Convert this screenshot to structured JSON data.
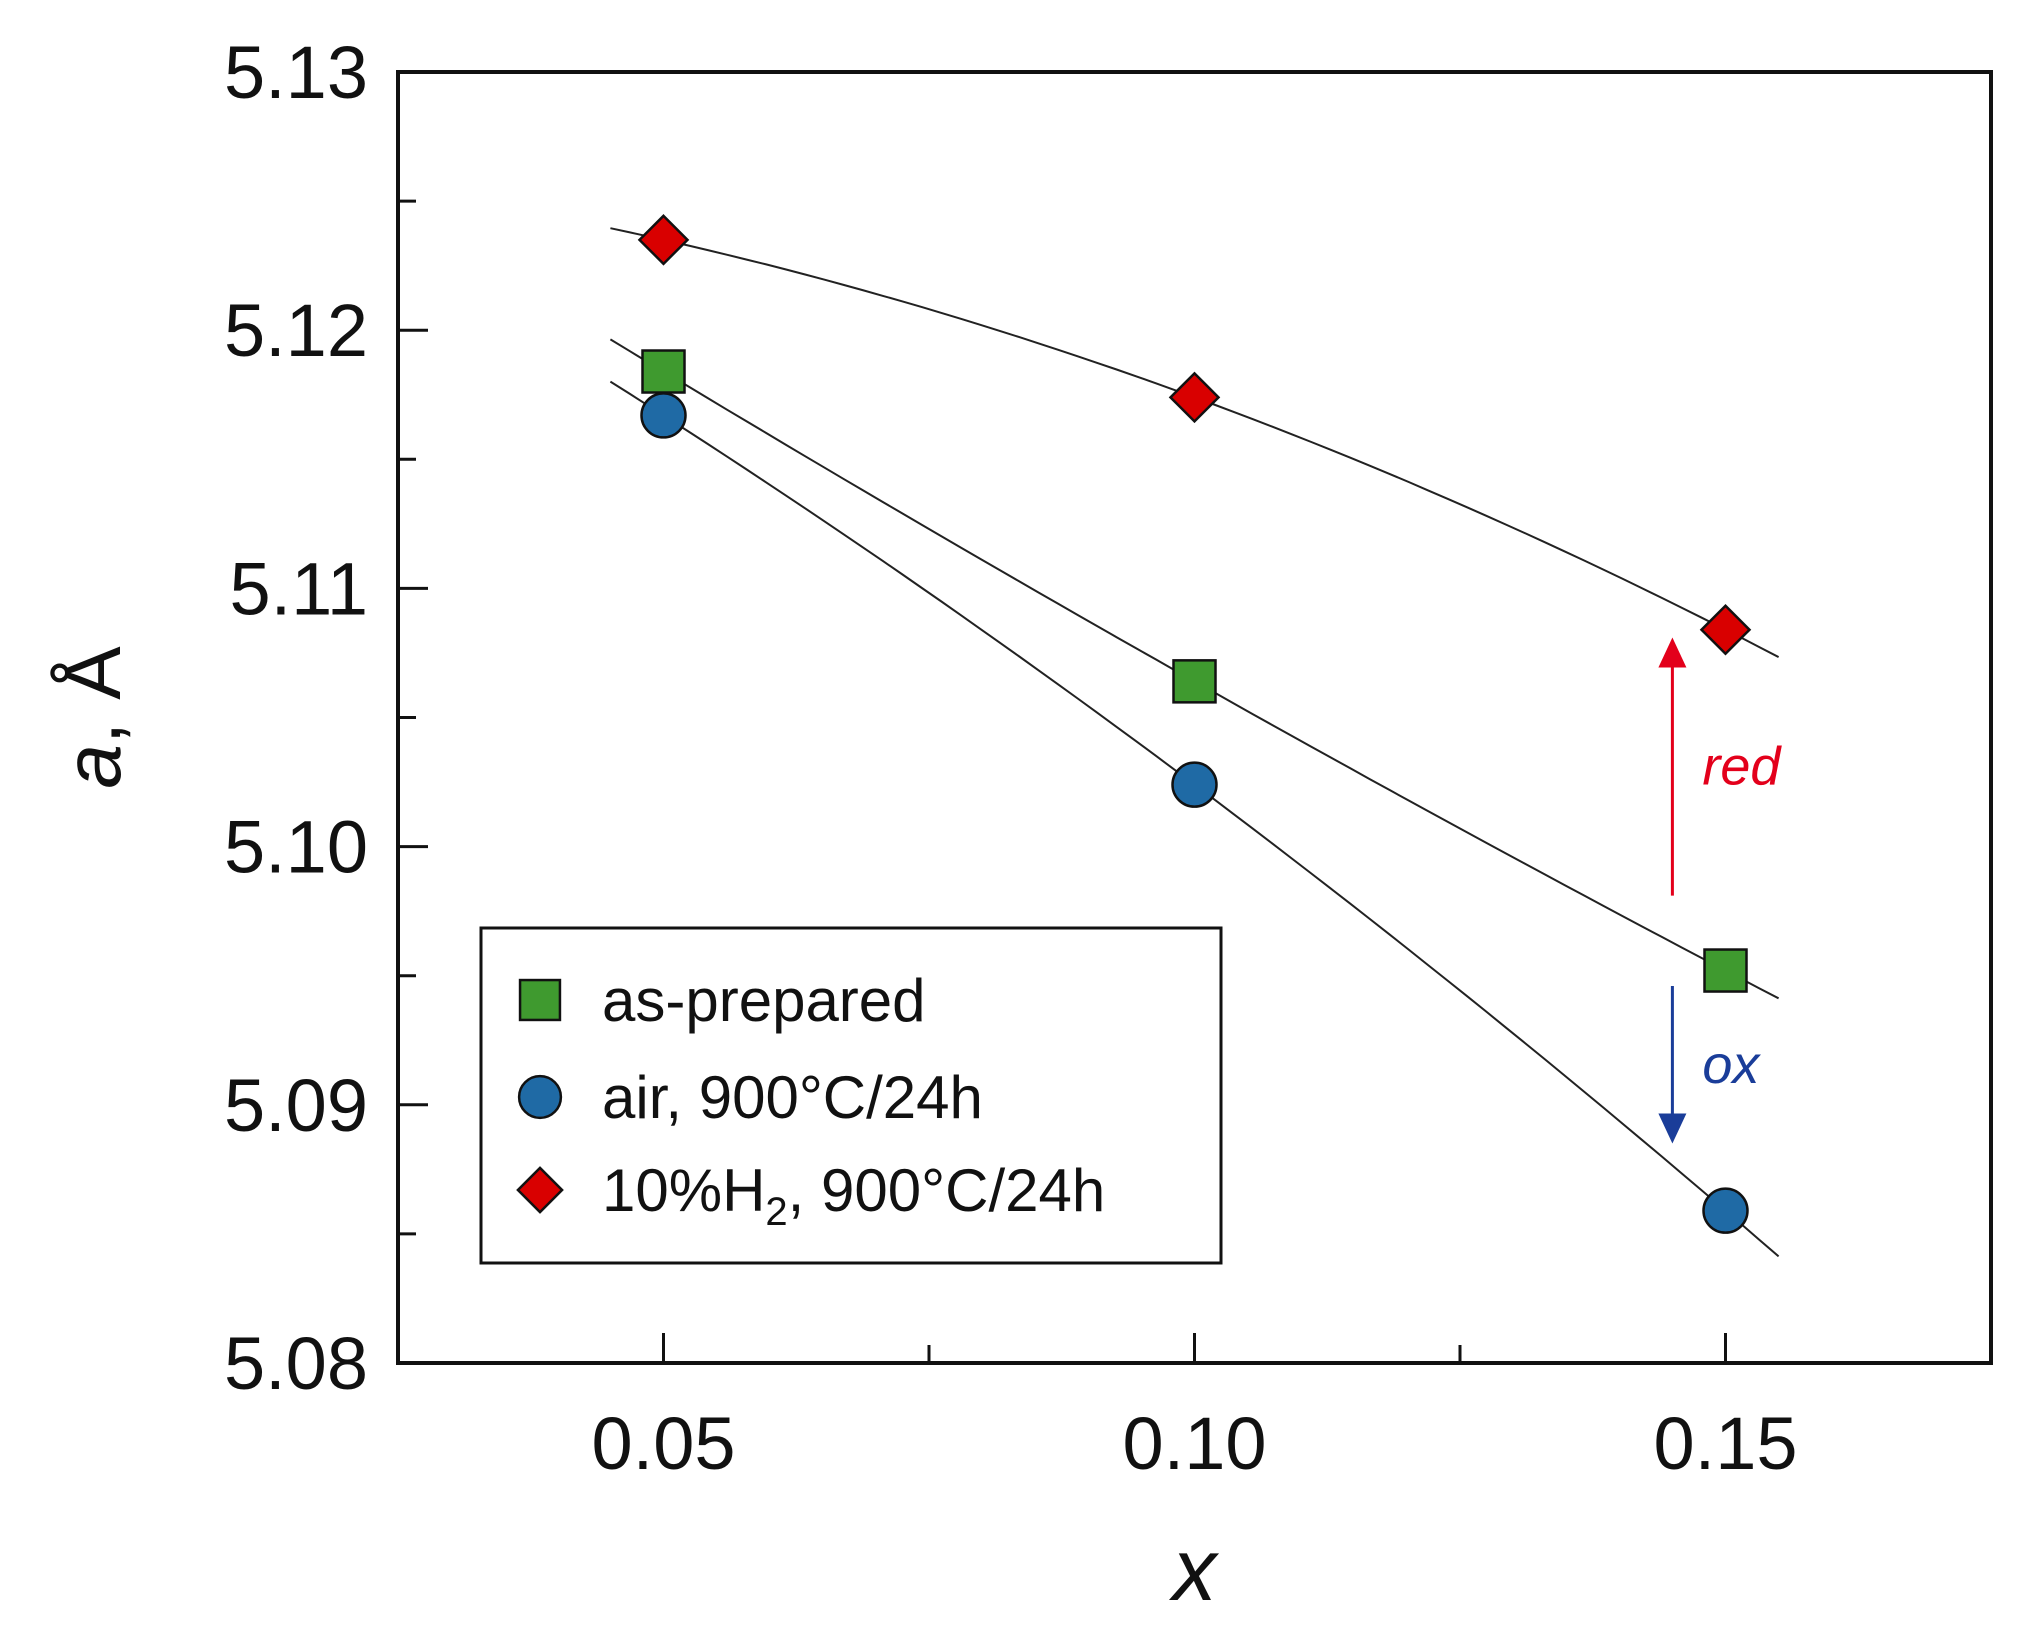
{
  "chart_data": {
    "type": "scatter",
    "title": "",
    "xlabel": "x",
    "ylabel_italic": "a",
    "ylabel_unit": ", Å",
    "xlim": [
      0.025,
      0.175
    ],
    "ylim": [
      5.08,
      5.13
    ],
    "x_ticks": [
      0.05,
      0.1,
      0.15
    ],
    "x_tick_labels": [
      "0.05",
      "0.10",
      "0.15"
    ],
    "x_minor_ticks": [
      0.075,
      0.125
    ],
    "y_ticks": [
      5.08,
      5.09,
      5.1,
      5.11,
      5.12,
      5.13
    ],
    "y_tick_labels": [
      "5.08",
      "5.09",
      "5.10",
      "5.11",
      "5.12",
      "5.13"
    ],
    "y_minor_ticks": [
      5.085,
      5.095,
      5.105,
      5.115,
      5.125
    ],
    "grid": false,
    "legend_position": "bottom-left",
    "series": [
      {
        "name": "as-prepared",
        "marker": "square",
        "color": "#3f9a2f",
        "x": [
          0.05,
          0.1,
          0.15
        ],
        "values": [
          5.1184,
          5.1064,
          5.0952
        ],
        "fit_x": [
          0.045,
          0.155
        ],
        "fit_values": [
          5.1193,
          5.0939
        ]
      },
      {
        "name": "air, 900°C/24h",
        "marker": "circle",
        "color": "#1f6aa5",
        "x": [
          0.05,
          0.1,
          0.15
        ],
        "values": [
          5.1167,
          5.1024,
          5.0859
        ],
        "fit_x": [
          0.045,
          0.155
        ],
        "fit_values": [
          5.1181,
          5.0841
        ]
      },
      {
        "name": "10%H2, 900°C/24h",
        "legend_main": "10%H",
        "legend_sub": "2",
        "legend_tail": ", 900°C/24h",
        "marker": "diamond",
        "color": "#d90000",
        "x": [
          0.05,
          0.1,
          0.15
        ],
        "values": [
          5.1235,
          5.1174,
          5.1084
        ],
        "fit_x": [
          0.045,
          0.155
        ],
        "fit_values": [
          5.124,
          5.1073
        ]
      }
    ],
    "annotations": [
      {
        "text": "red",
        "color": "#e3001b",
        "direction": "up",
        "x": 0.145,
        "from": 5.0981,
        "to": 5.1081
      },
      {
        "text": "ox",
        "color": "#1a3d99",
        "direction": "down",
        "x": 0.145,
        "from": 5.0946,
        "to": 5.0885
      }
    ]
  }
}
